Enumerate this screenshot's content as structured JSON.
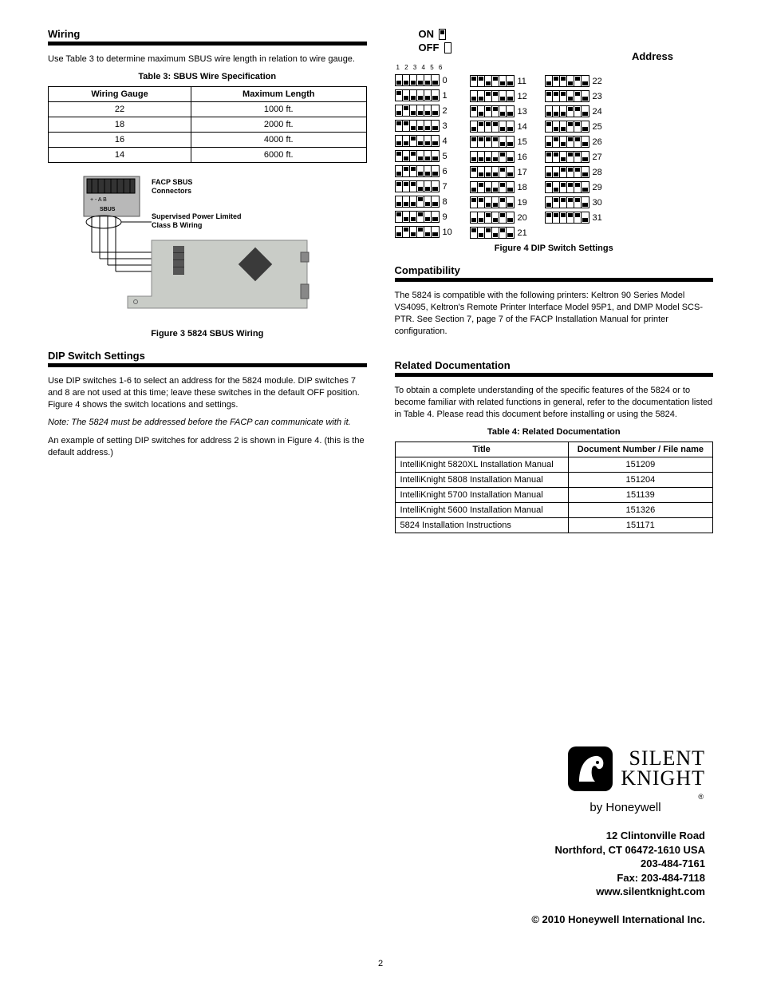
{
  "left": {
    "wiring": {
      "title": "Wiring",
      "intro": "Use Table 3 to determine maximum SBUS wire length in relation to wire gauge.",
      "table": {
        "caption": "Table 3: SBUS Wire Specification",
        "headers": [
          "Wiring Gauge",
          "Maximum Length"
        ],
        "rows": [
          [
            "22",
            "1000 ft."
          ],
          [
            "18",
            "2000 ft."
          ],
          [
            "16",
            "4000 ft."
          ],
          [
            "14",
            "6000 ft."
          ]
        ]
      },
      "fig_labels": {
        "facp": "FACP SBUS Connectors",
        "wiring_note": "Supervised Power Limited Class B Wiring"
      },
      "fig_caption": "Figure 3  5824 SBUS Wiring"
    },
    "dip": {
      "title": "DIP Switch Settings",
      "para1": "Use DIP switches 1-6 to select an address for the 5824 module. DIP switches 7 and 8 are not used at this time; leave these switches in the default OFF position. Figure 4 shows the switch locations and settings.",
      "note": "Note: The 5824 must be addressed before the FACP can communicate with it.",
      "para2": "An example of setting DIP switches for address 2 is shown in Figure 4. (this is the default address.)"
    }
  },
  "right": {
    "legend_on": "ON",
    "legend_off": "OFF",
    "numbers": "1 2 3 4 5 6",
    "addr_header": "Address",
    "fig_caption": "Figure 4  DIP Switch Settings",
    "compat": {
      "title": "Compatibility",
      "para": "The 5824 is compatible with the following printers: Keltron 90 Series Model VS4095, Keltron's Remote Printer Interface Model 95P1, and DMP Model SCS-PTR. See Section 7, page 7 of the FACP Installation Manual for printer configuration."
    },
    "related": {
      "title": "Related Documentation",
      "para": "To obtain a complete understanding of the specific features of the 5824 or to become familiar with related functions in general, refer to the documentation listed in Table 4. Please read this document before installing or using the 5824.",
      "table_caption": "Table 4: Related Documentation",
      "headers": [
        "Title",
        "Document Number / File name"
      ],
      "rows": [
        [
          "IntelliKnight 5820XL Installation Manual",
          "151209"
        ],
        [
          "IntelliKnight 5808 Installation Manual",
          "151204"
        ],
        [
          "IntelliKnight 5700 Installation Manual",
          "151139"
        ],
        [
          "IntelliKnight 5600 Installation Manual",
          "151326"
        ],
        [
          "5824 Installation Instructions",
          "151171"
        ]
      ]
    }
  },
  "footer": {
    "brand1": "SILENT",
    "brand2": "KNIGHT",
    "byline": "by Honeywell",
    "addr": [
      "12 Clintonville Road",
      "Northford, CT 06472-1610 USA",
      "203-484-7161",
      "Fax: 203-484-7118",
      "www.silentknight.com"
    ],
    "copyright": "© 2010 Honeywell International Inc.",
    "page": "2"
  },
  "dip_addresses": [
    0,
    1,
    2,
    3,
    4,
    5,
    6,
    7,
    8,
    9,
    10,
    11,
    12,
    13,
    14,
    15,
    16,
    17,
    18,
    19,
    20,
    21,
    22,
    23,
    24,
    25,
    26,
    27,
    28,
    29,
    30,
    31
  ],
  "colors": {
    "pcb": "#c9ccc7",
    "facp_block": "#b8b8b8",
    "chip": "#3a3a3a"
  }
}
